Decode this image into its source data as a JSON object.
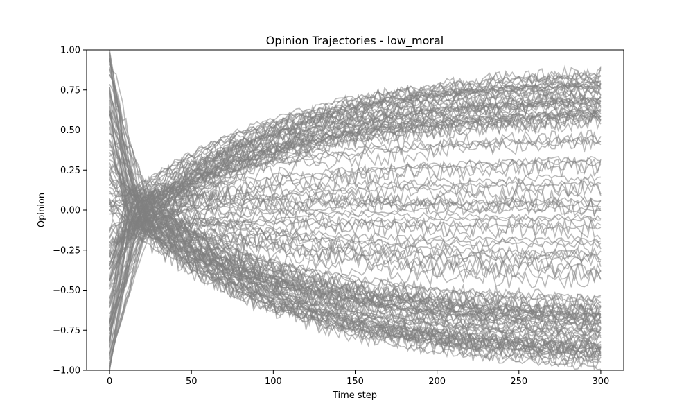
{
  "chart_data": {
    "type": "line",
    "title": "Opinion Trajectories - low_moral",
    "xlabel": "Time step",
    "ylabel": "Opinion",
    "xlim": [
      -14,
      314
    ],
    "ylim": [
      -1.0,
      1.0
    ],
    "x_ticks": [
      0,
      50,
      100,
      150,
      200,
      250,
      300
    ],
    "x_tick_labels": [
      "0",
      "50",
      "100",
      "150",
      "200",
      "250",
      "300"
    ],
    "y_ticks": [
      -1.0,
      -0.75,
      -0.5,
      -0.25,
      0.0,
      0.25,
      0.5,
      0.75,
      1.0
    ],
    "y_tick_labels": [
      "−1.00",
      "−0.75",
      "−0.50",
      "−0.25",
      "0.00",
      "0.25",
      "0.50",
      "0.75",
      "1.00"
    ],
    "grid": false,
    "legend": "none",
    "series_color": "#808080",
    "series_alpha": 0.55,
    "n_series": 120,
    "x_start": 0,
    "x_end": 300,
    "series_note": "Many (~100+) individual agent opinion trajectories, all grey; most start in [-1, 1] at step 0, many collapse toward ~0 near step 10-20 and then diverge, finishing spread across roughly -0.98 to 0.86 at step 300.",
    "representative_series": [
      {
        "start": 0.98,
        "end": 0.84
      },
      {
        "start": 0.6,
        "end": 0.8
      },
      {
        "start": 0.45,
        "end": 0.74
      },
      {
        "start": 0.3,
        "end": 0.6
      },
      {
        "start": 0.0,
        "end": 0.45
      },
      {
        "start": -0.1,
        "end": 0.2
      },
      {
        "start": 0.1,
        "end": -0.05
      },
      {
        "start": 0.2,
        "end": -0.3
      },
      {
        "start": 0.05,
        "end": -0.55
      },
      {
        "start": -0.3,
        "end": -0.78
      },
      {
        "start": -0.7,
        "end": -0.88
      },
      {
        "start": -0.82,
        "end": -0.98
      }
    ]
  }
}
